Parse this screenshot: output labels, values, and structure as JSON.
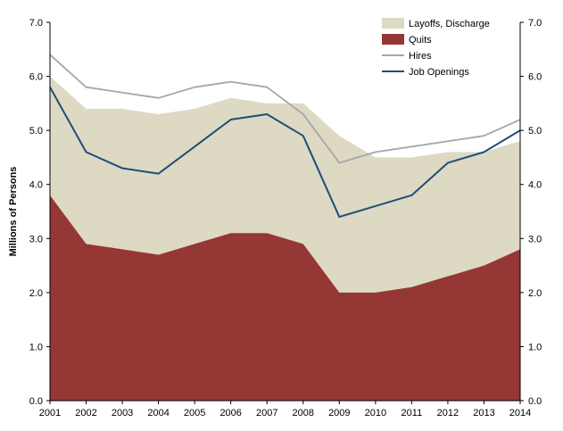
{
  "chart_data": {
    "type": "area",
    "ylabel": "Millions of Persons",
    "xlabel": "",
    "ylim": [
      0,
      7
    ],
    "y_ticks": [
      "0.0",
      "1.0",
      "2.0",
      "3.0",
      "4.0",
      "5.0",
      "6.0",
      "7.0"
    ],
    "right_axis": true,
    "grid": false,
    "legend_position": "top-right",
    "x": [
      "2001",
      "2002",
      "2003",
      "2004",
      "2005",
      "2006",
      "2007",
      "2008",
      "2009",
      "2010",
      "2011",
      "2012",
      "2013",
      "2014"
    ],
    "series": [
      {
        "name": "Layoffs, Discharge",
        "kind": "stacked-area",
        "color": "#ddd9c3",
        "values": [
          2.2,
          2.5,
          2.6,
          2.6,
          2.5,
          2.5,
          2.4,
          2.6,
          2.9,
          2.5,
          2.4,
          2.3,
          2.1,
          2.0
        ]
      },
      {
        "name": "Quits",
        "kind": "area",
        "color": "#953735",
        "values": [
          3.8,
          2.9,
          2.8,
          2.7,
          2.9,
          3.1,
          3.1,
          2.9,
          2.0,
          2.0,
          2.1,
          2.3,
          2.5,
          2.8
        ]
      },
      {
        "name": "Hires",
        "kind": "line",
        "color": "#a6a6a6",
        "values": [
          6.4,
          5.8,
          5.7,
          5.6,
          5.8,
          5.9,
          5.8,
          5.3,
          4.4,
          4.6,
          4.7,
          4.8,
          4.9,
          5.2
        ]
      },
      {
        "name": "Job Openings",
        "kind": "line",
        "color": "#1f4e79",
        "values": [
          5.8,
          4.6,
          4.3,
          4.2,
          4.7,
          5.2,
          5.3,
          4.9,
          3.4,
          3.6,
          3.8,
          4.4,
          4.6,
          5.0
        ]
      }
    ]
  }
}
